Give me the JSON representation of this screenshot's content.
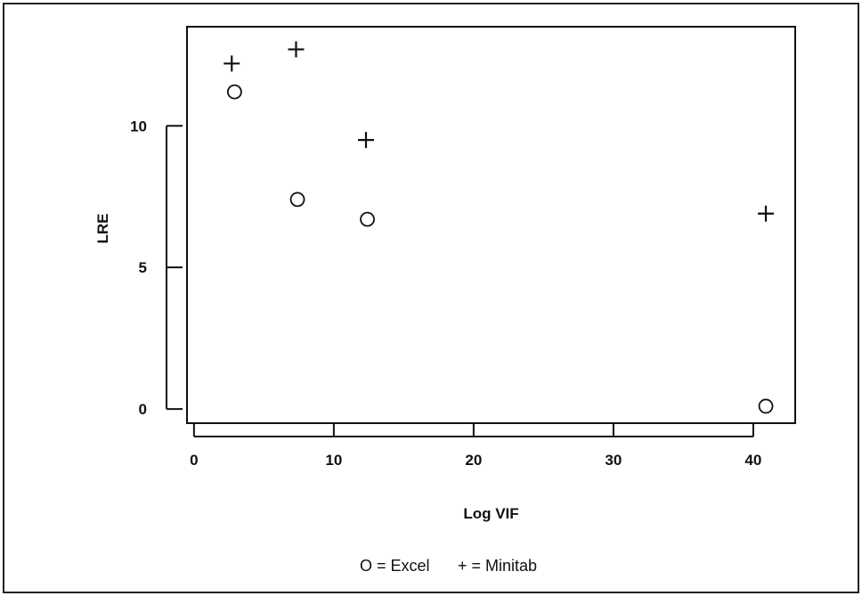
{
  "chart_data": {
    "type": "scatter",
    "xlabel": "Log VIF",
    "ylabel": "LRE",
    "xlim": [
      -0.5,
      43
    ],
    "ylim": [
      -0.5,
      13.5
    ],
    "x_ticks": [
      0,
      10,
      20,
      30,
      40
    ],
    "y_ticks": [
      0,
      5,
      10
    ],
    "grid": false,
    "legend_placement": "bottom",
    "series": [
      {
        "marker": "circle",
        "legend_label": "O = Excel",
        "points": [
          {
            "x": 2.9,
            "y": 11.2
          },
          {
            "x": 7.4,
            "y": 7.4
          },
          {
            "x": 12.4,
            "y": 6.7
          },
          {
            "x": 40.9,
            "y": 0.1
          }
        ]
      },
      {
        "marker": "plus",
        "legend_label": "+ = Minitab",
        "points": [
          {
            "x": 2.7,
            "y": 12.2
          },
          {
            "x": 7.3,
            "y": 12.7
          },
          {
            "x": 12.3,
            "y": 9.5
          },
          {
            "x": 40.9,
            "y": 6.9
          }
        ]
      }
    ]
  }
}
